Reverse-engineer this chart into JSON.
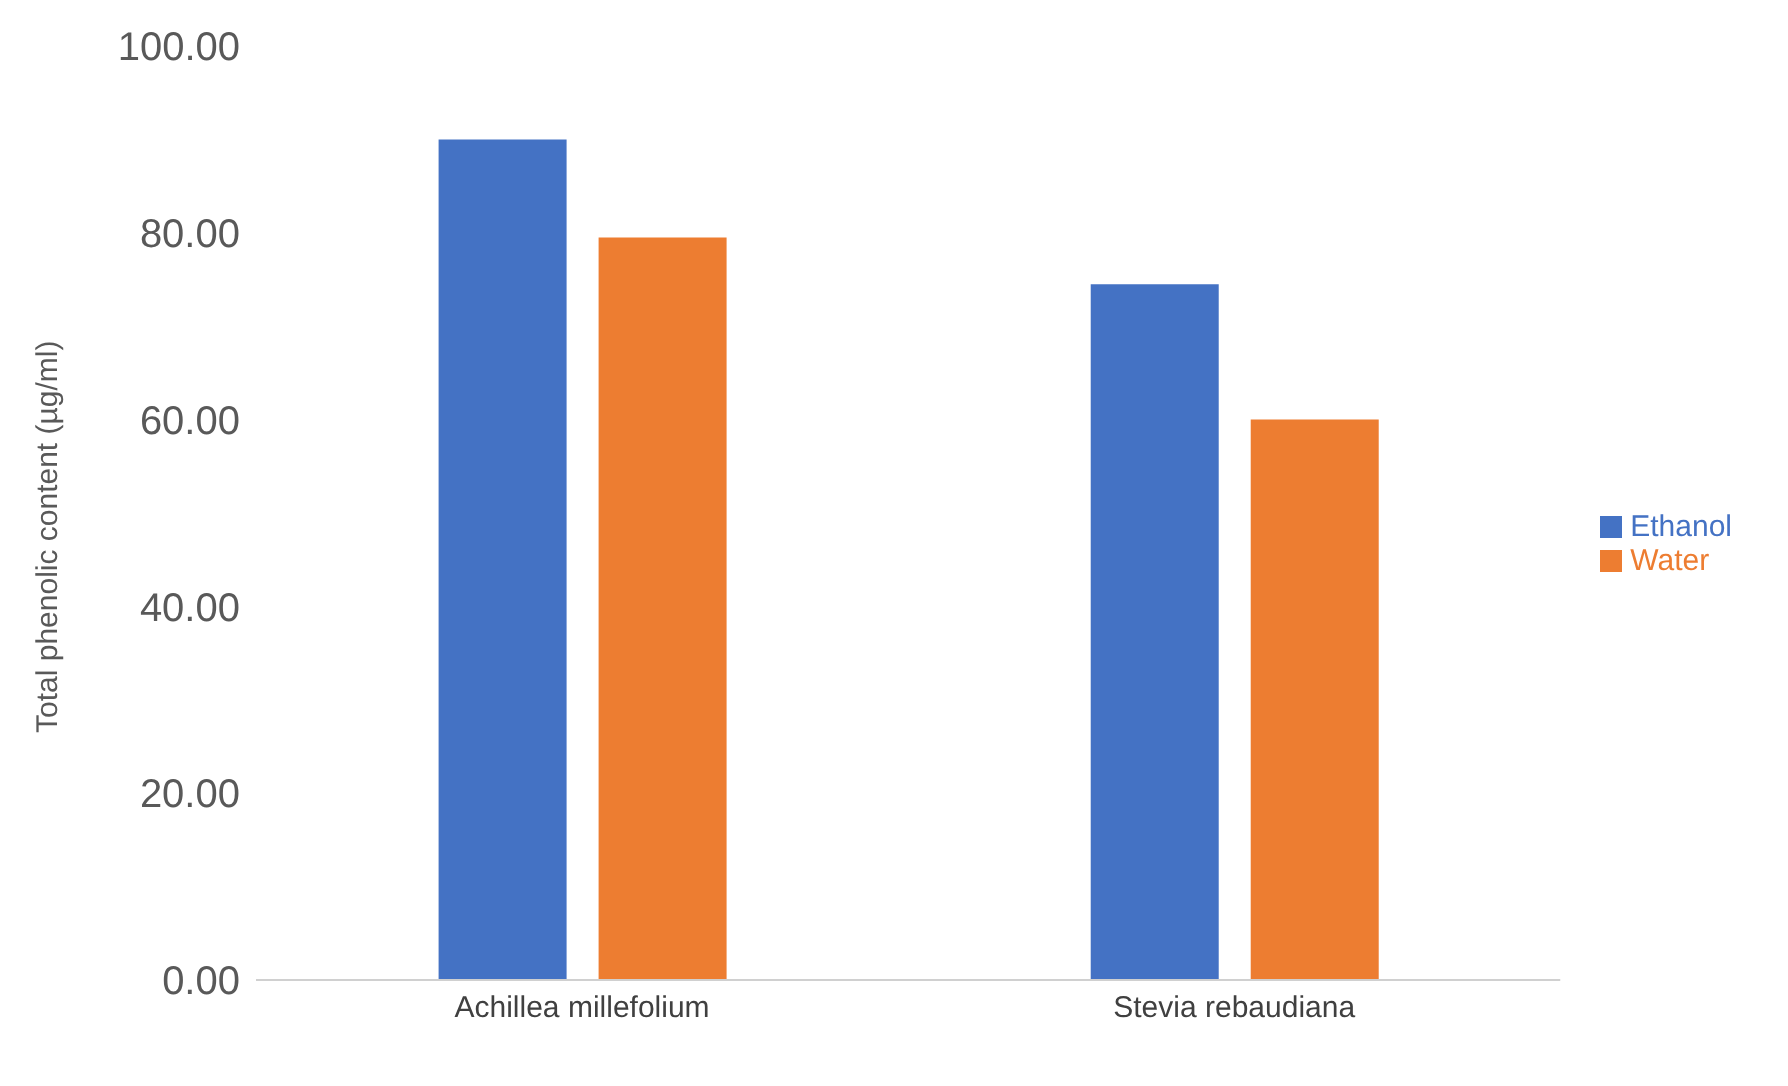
{
  "chart_data": {
    "type": "bar",
    "ylabel": "Total phenolic content (µg/ml)",
    "categories": [
      "Achillea millefolium",
      "Stevia rebaudiana"
    ],
    "series": [
      {
        "name": "Ethanol",
        "color": "#4472c4",
        "values": [
          90,
          74.5
        ]
      },
      {
        "name": "Water",
        "color": "#ed7d31",
        "values": [
          79.5,
          60
        ]
      }
    ],
    "ylim": [
      0,
      100
    ],
    "yticks": [
      {
        "value": 0,
        "label": "0.00"
      },
      {
        "value": 20,
        "label": "20.00"
      },
      {
        "value": 40,
        "label": "40.00"
      },
      {
        "value": 60,
        "label": "60.00"
      },
      {
        "value": 80,
        "label": "80.00"
      },
      {
        "value": 100,
        "label": "100.00"
      }
    ],
    "grid": false,
    "legend": "right"
  }
}
